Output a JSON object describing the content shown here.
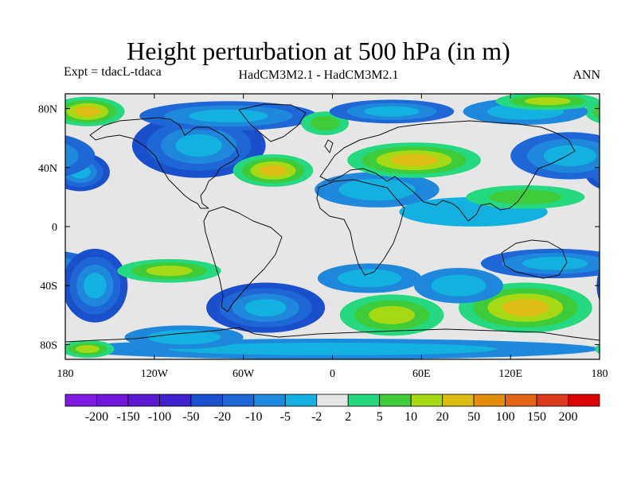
{
  "header": {
    "title": "Height perturbation at 500 hPa (in m)",
    "expt": "Expt = tdacL-tdaca",
    "model": "HadCM3M2.1 - HadCM3M2.1",
    "season": "ANN"
  },
  "chart_data": {
    "type": "heatmap",
    "title": "Height perturbation at 500 hPa (in m)",
    "xlim": [
      -180,
      180
    ],
    "ylim": [
      -90,
      90
    ],
    "x_ticks": [
      {
        "value": -180,
        "label": "180"
      },
      {
        "value": -120,
        "label": "120W"
      },
      {
        "value": -60,
        "label": "60W"
      },
      {
        "value": 0,
        "label": "0"
      },
      {
        "value": 60,
        "label": "60E"
      },
      {
        "value": 120,
        "label": "120E"
      },
      {
        "value": 180,
        "label": "180"
      }
    ],
    "y_ticks": [
      {
        "value": 80,
        "label": "80N"
      },
      {
        "value": 40,
        "label": "40N"
      },
      {
        "value": 0,
        "label": "0"
      },
      {
        "value": -40,
        "label": "40S"
      },
      {
        "value": -80,
        "label": "80S"
      }
    ],
    "levels": [
      "-200",
      "-150",
      "-100",
      "-50",
      "-20",
      "-10",
      "-5",
      "-2",
      "2",
      "5",
      "10",
      "20",
      "50",
      "100",
      "150",
      "200"
    ],
    "colors": [
      "#7f1ae0",
      "#6f16d8",
      "#5a1ad0",
      "#3f22cc",
      "#1a50cc",
      "#1f66d6",
      "#1e88dc",
      "#14b0e0",
      "#e6e6e6",
      "#26d880",
      "#3ecc3a",
      "#a6d814",
      "#dcbc12",
      "#e48e10",
      "#e26416",
      "#dc3a1c",
      "#d80000"
    ],
    "features": [
      {
        "lon": -90,
        "lat": 55,
        "value": -35,
        "rx": 45,
        "ry": 22
      },
      {
        "lon": -170,
        "lat": 37,
        "value": -20,
        "rx": 20,
        "ry": 13
      },
      {
        "lon": -70,
        "lat": 75,
        "value": -12,
        "rx": 60,
        "ry": 10
      },
      {
        "lon": -40,
        "lat": 38,
        "value": 22,
        "rx": 27,
        "ry": 11
      },
      {
        "lon": -165,
        "lat": 78,
        "value": 22,
        "rx": 25,
        "ry": 10
      },
      {
        "lon": -5,
        "lat": 70,
        "value": 7,
        "rx": 16,
        "ry": 8
      },
      {
        "lon": 30,
        "lat": 25,
        "value": -7,
        "rx": 42,
        "ry": 12
      },
      {
        "lon": 55,
        "lat": 45,
        "value": 25,
        "rx": 45,
        "ry": 12
      },
      {
        "lon": 40,
        "lat": 78,
        "value": -10,
        "rx": 42,
        "ry": 8
      },
      {
        "lon": 130,
        "lat": 78,
        "value": -9,
        "rx": 42,
        "ry": 9
      },
      {
        "lon": 160,
        "lat": 48,
        "value": -15,
        "rx": 40,
        "ry": 16
      },
      {
        "lon": 95,
        "lat": 10,
        "value": -4,
        "rx": 50,
        "ry": 10
      },
      {
        "lon": 130,
        "lat": 20,
        "value": 6,
        "rx": 40,
        "ry": 8
      },
      {
        "lon": 145,
        "lat": 85,
        "value": 10,
        "rx": 35,
        "ry": 6
      },
      {
        "lon": 150,
        "lat": -25,
        "value": -12,
        "rx": 50,
        "ry": 10
      },
      {
        "lon": -160,
        "lat": -40,
        "value": -20,
        "rx": 22,
        "ry": 25
      },
      {
        "lon": -110,
        "lat": -30,
        "value": 10,
        "rx": 35,
        "ry": 8
      },
      {
        "lon": -45,
        "lat": -55,
        "value": -35,
        "rx": 40,
        "ry": 17
      },
      {
        "lon": 25,
        "lat": -35,
        "value": -8,
        "rx": 35,
        "ry": 10
      },
      {
        "lon": 40,
        "lat": -60,
        "value": 18,
        "rx": 35,
        "ry": 14
      },
      {
        "lon": 130,
        "lat": -55,
        "value": 40,
        "rx": 45,
        "ry": 17
      },
      {
        "lon": 85,
        "lat": -40,
        "value": -5,
        "rx": 30,
        "ry": 12
      },
      {
        "lon": 0,
        "lat": -83,
        "value": -5,
        "rx": 180,
        "ry": 7
      },
      {
        "lon": -165,
        "lat": -83,
        "value": 10,
        "rx": 18,
        "ry": 6
      },
      {
        "lon": -100,
        "lat": -75,
        "value": -8,
        "rx": 40,
        "ry": 8
      }
    ]
  }
}
